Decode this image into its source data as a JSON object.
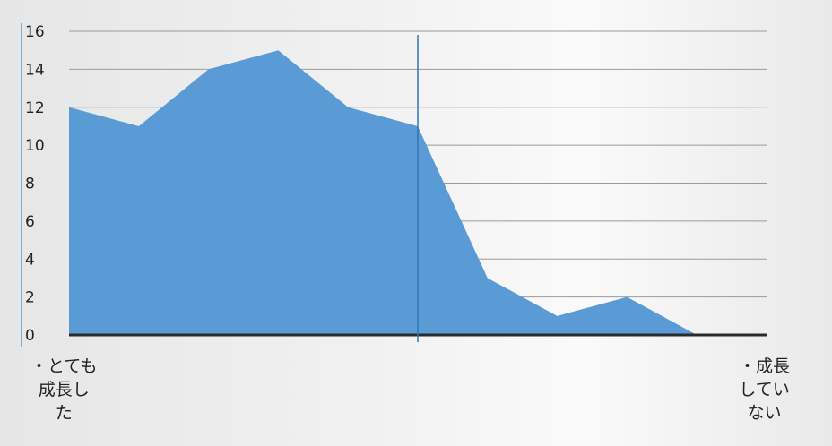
{
  "chart_data": {
    "type": "area",
    "x": [
      1,
      2,
      3,
      4,
      5,
      6,
      7,
      8,
      9,
      10,
      11
    ],
    "values": [
      12,
      11,
      14,
      15,
      12,
      11,
      3,
      1,
      2,
      0,
      0
    ],
    "ylim": [
      0,
      16
    ],
    "yticks": [
      0,
      2,
      4,
      6,
      8,
      10,
      12,
      14,
      16
    ],
    "ytick_labels": [
      "0",
      "2",
      "4",
      "6",
      "8",
      "10",
      "12",
      "14",
      "16"
    ],
    "grid": true,
    "legend": "none",
    "vertical_marker_x": 6,
    "category_labels": {
      "left": "・とても\n成長し\nた",
      "right": "・成長\nしてい\nない"
    },
    "title": "",
    "xlabel": "",
    "ylabel": "",
    "colors": {
      "fill": "#5b9bd5",
      "axis": "#2a2a2a",
      "marker": "#2e75b6",
      "grid": "#9a9a9a"
    }
  }
}
